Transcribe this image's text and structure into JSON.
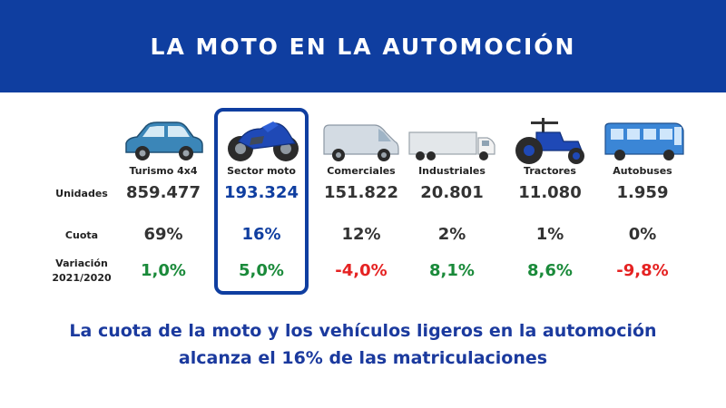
{
  "title": "LA MOTO EN LA AUTOMOCIÓN",
  "row_labels": {
    "units": "Unidades",
    "share": "Cuota",
    "variation_line1": "Variación",
    "variation_line2": "2021/2020"
  },
  "footer": {
    "line1": "La cuota de la moto y los vehículos ligeros en la automoción",
    "line2": "alcanza el 16% de las matriculaciones"
  },
  "colors": {
    "banner": "#0f3ea0",
    "highlight": "#0f3ea0",
    "positive": "#1a8a3a",
    "negative": "#e52222",
    "footer_text": "#1b3a9e"
  },
  "chart_data": {
    "type": "table",
    "title": "LA MOTO EN LA AUTOMOCIÓN",
    "highlighted_category": "Sector moto",
    "categories": [
      {
        "name": "Turismo 4x4",
        "icon": "car-icon",
        "units": "859.477",
        "share": "69%",
        "variation": "1,0%",
        "units_value": 859477,
        "share_pct": 69,
        "variation_pct": 1.0
      },
      {
        "name": "Sector moto",
        "icon": "motorcycle-icon",
        "units": "193.324",
        "share": "16%",
        "variation": "5,0%",
        "units_value": 193324,
        "share_pct": 16,
        "variation_pct": 5.0
      },
      {
        "name": "Comerciales",
        "icon": "van-icon",
        "units": "151.822",
        "share": "12%",
        "variation": "-4,0%",
        "units_value": 151822,
        "share_pct": 12,
        "variation_pct": -4.0
      },
      {
        "name": "Industriales",
        "icon": "truck-icon",
        "units": "20.801",
        "share": "2%",
        "variation": "8,1%",
        "units_value": 20801,
        "share_pct": 2,
        "variation_pct": 8.1
      },
      {
        "name": "Tractores",
        "icon": "tractor-icon",
        "units": "11.080",
        "share": "1%",
        "variation": "8,6%",
        "units_value": 11080,
        "share_pct": 1,
        "variation_pct": 8.6
      },
      {
        "name": "Autobuses",
        "icon": "bus-icon",
        "units": "1.959",
        "share": "0%",
        "variation": "-9,8%",
        "units_value": 1959,
        "share_pct": 0,
        "variation_pct": -9.8
      }
    ]
  }
}
